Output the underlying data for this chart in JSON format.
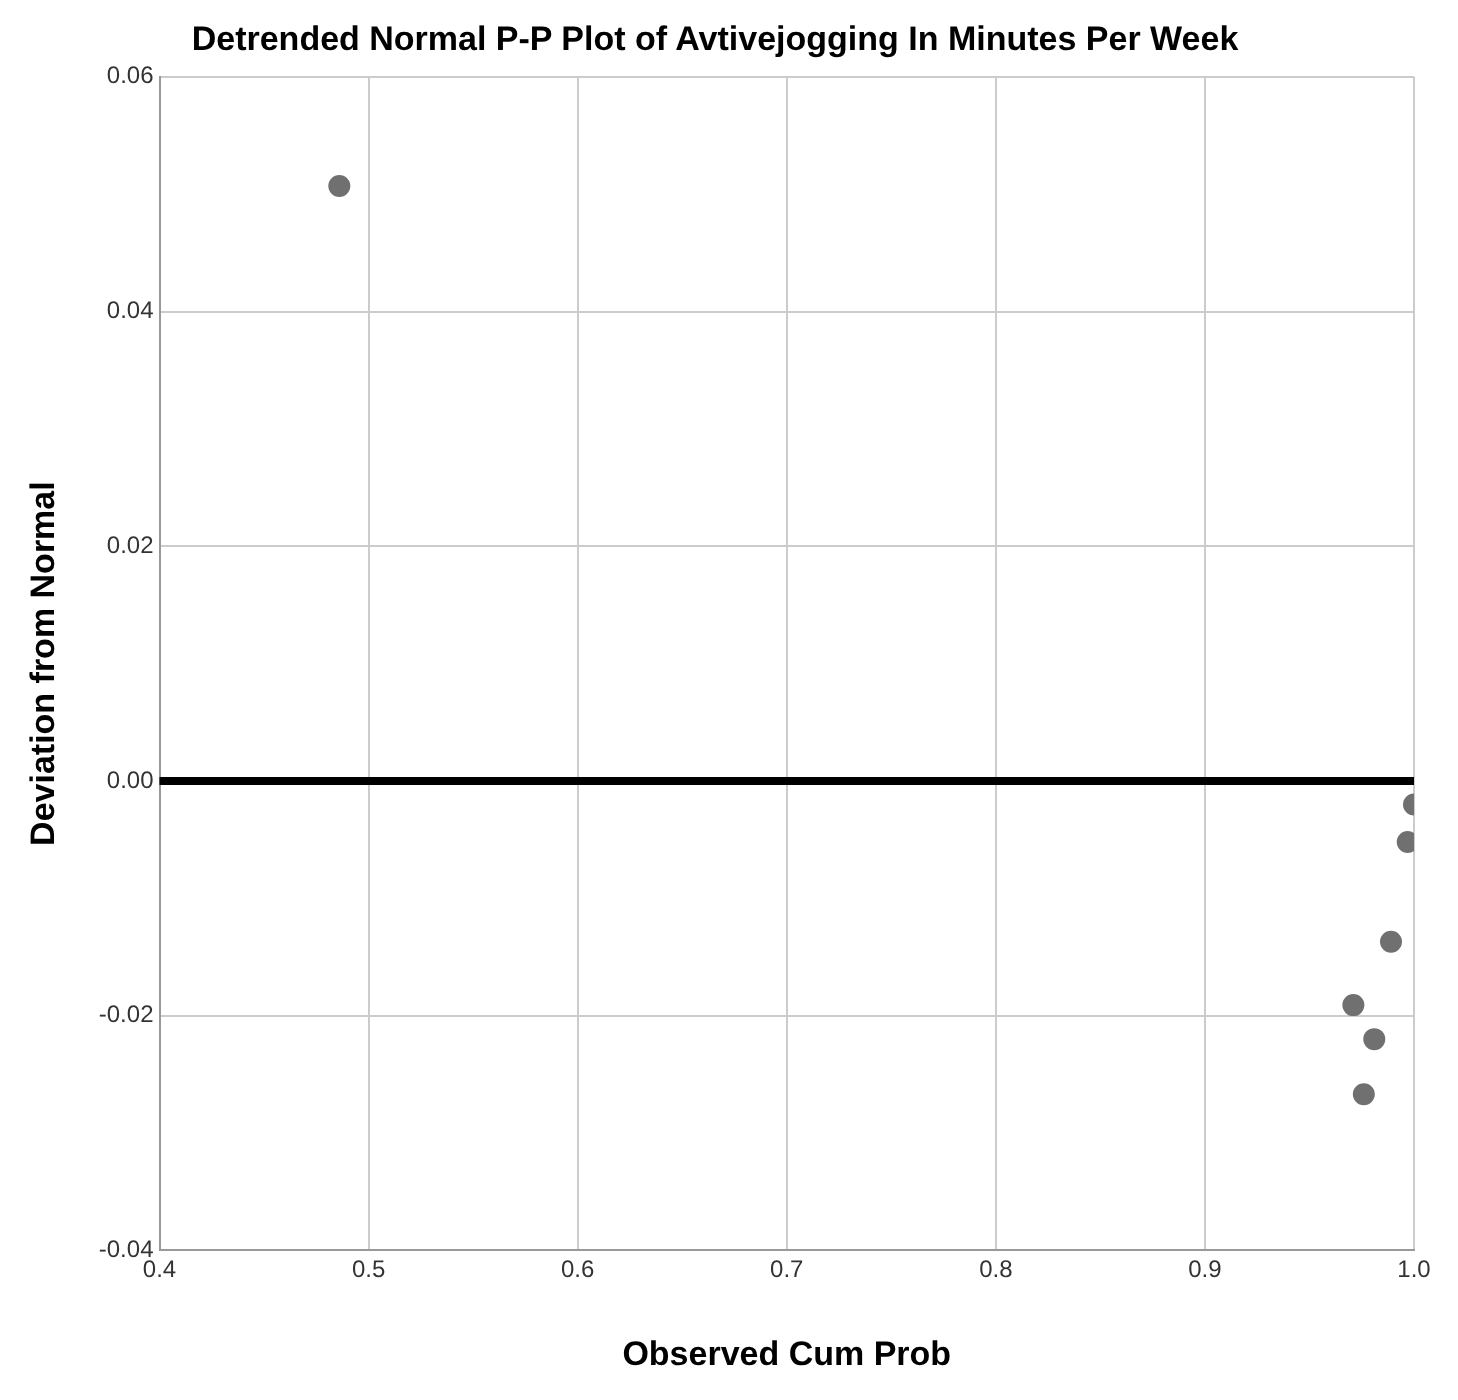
{
  "chart_data": {
    "type": "scatter",
    "title": "Detrended Normal P-P Plot of Avtivejogging In Minutes Per Week",
    "xlabel": "Observed Cum Prob",
    "ylabel": "Deviation from Normal",
    "x": [
      0.486,
      1.0,
      0.997,
      0.989,
      0.971,
      0.981,
      0.976
    ],
    "values": [
      0.0507,
      -0.002,
      -0.0052,
      -0.0137,
      -0.0191,
      -0.022,
      -0.0267
    ],
    "color": "#707070",
    "marker": "circle",
    "xlim": [
      0.4,
      1.0
    ],
    "xticks": [
      0.4,
      0.5,
      0.6,
      0.7,
      0.8,
      0.9,
      {
        "value": 1,
        "label": "1.0"
      }
    ],
    "ylim": [
      -0.04,
      0.06
    ],
    "yticks": [
      -0.04,
      -0.02,
      {
        "value": 0,
        "label": "0.00"
      },
      0.02,
      0.04,
      0.06
    ],
    "ref_lines": [
      {
        "axis": "y",
        "value": 0,
        "color": "#000000"
      }
    ],
    "grid": true,
    "legend": false
  }
}
